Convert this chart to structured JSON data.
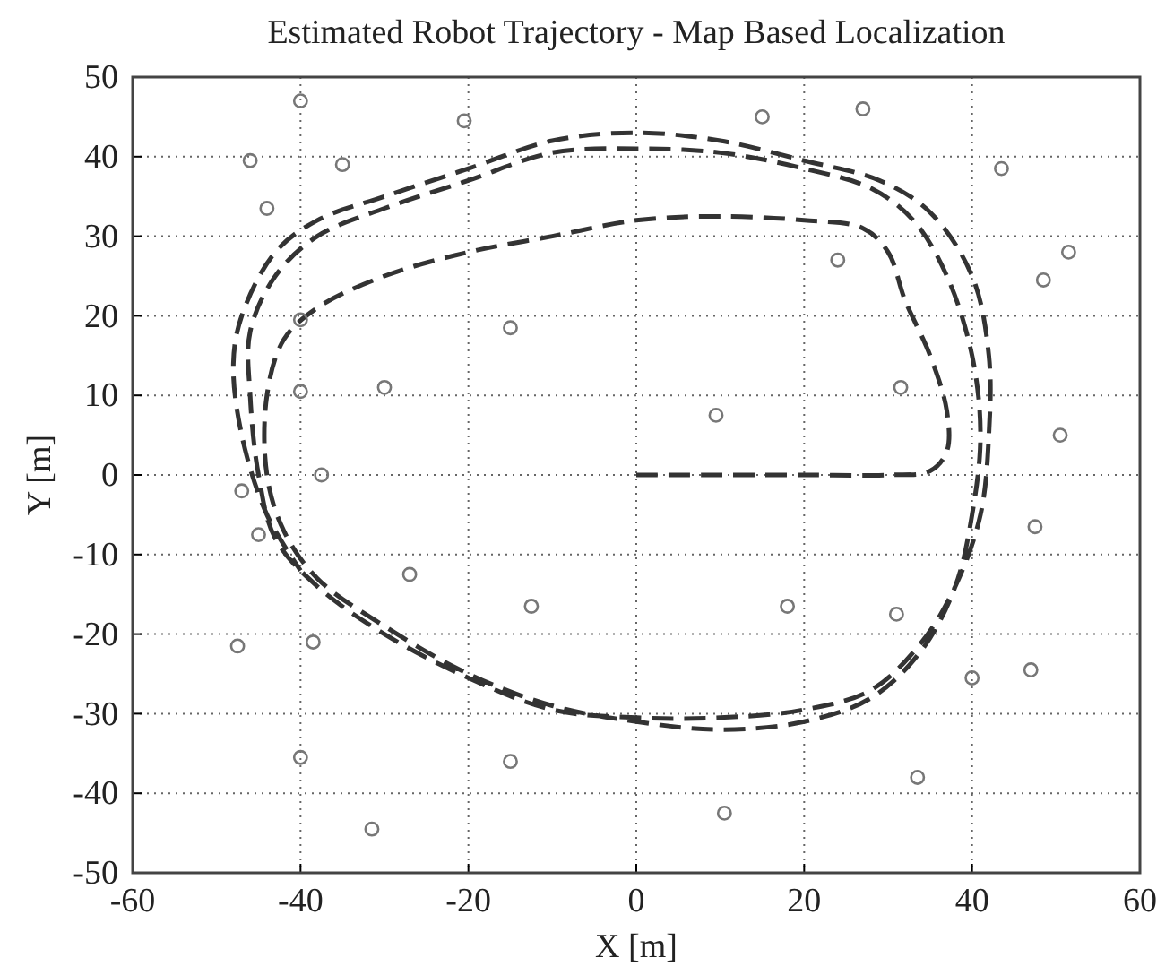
{
  "chart_data": {
    "type": "line",
    "title": "Estimated Robot Trajectory - Map Based Localization",
    "xlabel": "X [m]",
    "ylabel": "Y [m]",
    "xlim": [
      -60,
      60
    ],
    "xticks": [
      -60,
      -40,
      -20,
      0,
      20,
      40,
      60
    ],
    "ylim": [
      -50,
      50
    ],
    "yticks": [
      -50,
      -40,
      -30,
      -20,
      -10,
      0,
      10,
      20,
      30,
      40,
      50
    ],
    "grid": true,
    "series": [
      {
        "line_style": "dashed",
        "color": "#333333",
        "x": [
          0,
          10,
          20,
          30,
          35,
          37,
          37,
          35,
          32,
          30,
          27,
          20,
          10,
          0,
          -10,
          -20,
          -30,
          -38,
          -42,
          -44,
          -44,
          -42,
          -38,
          -30,
          -20,
          -10,
          0,
          10,
          20,
          28,
          34,
          38,
          40,
          41,
          40,
          37,
          33,
          28,
          20,
          10,
          0,
          -10,
          -20,
          -30,
          -38,
          -43,
          -46,
          -46,
          -45,
          -43,
          -38,
          -30,
          -20,
          -10,
          0,
          10,
          20,
          28,
          34,
          38,
          41,
          42,
          42,
          40,
          35,
          29,
          20,
          10,
          0,
          -10,
          -20,
          -30,
          -38,
          -43,
          -47,
          -48,
          -47,
          -44,
          -40
        ],
        "values": [
          0,
          0,
          0,
          0,
          0.5,
          3,
          8,
          15,
          22,
          28,
          31,
          32,
          32.5,
          32,
          30,
          28,
          25,
          21,
          17,
          10,
          0,
          -7,
          -13,
          -19,
          -25,
          -29,
          -31,
          -32,
          -31,
          -28,
          -22,
          -14,
          -5,
          5,
          15,
          25,
          32,
          36,
          38.5,
          40.5,
          41,
          40.5,
          37,
          33.5,
          30,
          25,
          18,
          10,
          0,
          -8,
          -14,
          -20,
          -25.5,
          -29.5,
          -30.5,
          -30.5,
          -29.5,
          -27,
          -21,
          -14,
          -5,
          5,
          15,
          25,
          33,
          37,
          39.5,
          42,
          43,
          42,
          38.5,
          35,
          32,
          28,
          20,
          14,
          5,
          -5,
          -12
        ]
      },
      {
        "type": "scatter",
        "marker": "circle",
        "color": "#777777",
        "x": [
          -40,
          -46,
          -35,
          -44,
          -20.5,
          -40,
          -40,
          -30,
          -15,
          -37.5,
          -47,
          -45,
          -27,
          -12.5,
          -47.5,
          -38.5,
          -40,
          -15,
          -31.5,
          15,
          27,
          43.5,
          24,
          48.5,
          51.5,
          9.5,
          31.5,
          50.5,
          47.5,
          18,
          31,
          40,
          47,
          33.5,
          10.5
        ],
        "values": [
          47,
          39.5,
          39,
          33.5,
          44.5,
          19.5,
          10.5,
          11,
          18.5,
          0,
          -2,
          -7.5,
          -12.5,
          -16.5,
          -21.5,
          -21,
          -35.5,
          -36,
          -44.5,
          45,
          46,
          38.5,
          27,
          24.5,
          28,
          7.5,
          11,
          5,
          -6.5,
          -16.5,
          -17.5,
          -25.5,
          -24.5,
          -38,
          -42.5
        ]
      }
    ]
  }
}
